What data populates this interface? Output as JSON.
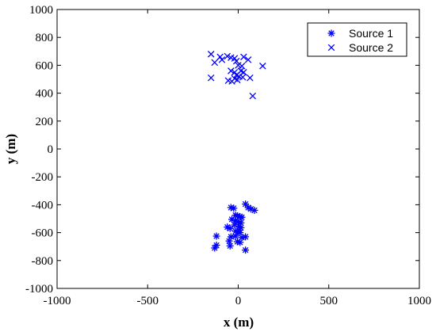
{
  "chart_data": {
    "type": "scatter",
    "title": "",
    "xlabel": "x (m)",
    "ylabel": "y (m)",
    "xlim": [
      -1000,
      1000
    ],
    "ylim": [
      -1000,
      1000
    ],
    "xticks": [
      -1000,
      -500,
      0,
      500,
      1000
    ],
    "yticks": [
      -1000,
      -800,
      -600,
      -400,
      -200,
      0,
      200,
      400,
      600,
      800,
      1000
    ],
    "grid": false,
    "legend_position": "top-right",
    "series": [
      {
        "name": "Source 1",
        "marker": "asterisk",
        "color": "#0000ff",
        "points": [
          [
            -40,
            -420
          ],
          [
            -25,
            -425
          ],
          [
            40,
            -395
          ],
          [
            55,
            -420
          ],
          [
            70,
            -430
          ],
          [
            90,
            -440
          ],
          [
            -15,
            -475
          ],
          [
            -5,
            -480
          ],
          [
            10,
            -485
          ],
          [
            20,
            -490
          ],
          [
            -35,
            -505
          ],
          [
            -15,
            -515
          ],
          [
            0,
            -520
          ],
          [
            15,
            -530
          ],
          [
            -20,
            -545
          ],
          [
            5,
            -555
          ],
          [
            15,
            -565
          ],
          [
            -60,
            -560
          ],
          [
            -45,
            -570
          ],
          [
            -15,
            -590
          ],
          [
            0,
            -595
          ],
          [
            10,
            -600
          ],
          [
            -120,
            -625
          ],
          [
            -40,
            -630
          ],
          [
            -15,
            -625
          ],
          [
            20,
            -635
          ],
          [
            40,
            -630
          ],
          [
            -50,
            -660
          ],
          [
            -5,
            -665
          ],
          [
            10,
            -670
          ],
          [
            -120,
            -690
          ],
          [
            -45,
            -695
          ],
          [
            -130,
            -710
          ],
          [
            40,
            -725
          ]
        ]
      },
      {
        "name": "Source 2",
        "marker": "x",
        "color": "#0000ff",
        "points": [
          [
            -150,
            680
          ],
          [
            -100,
            660
          ],
          [
            -60,
            665
          ],
          [
            -40,
            655
          ],
          [
            -20,
            650
          ],
          [
            30,
            660
          ],
          [
            55,
            640
          ],
          [
            -130,
            620
          ],
          [
            -90,
            640
          ],
          [
            -10,
            630
          ],
          [
            0,
            600
          ],
          [
            20,
            595
          ],
          [
            135,
            595
          ],
          [
            -40,
            560
          ],
          [
            -20,
            550
          ],
          [
            15,
            560
          ],
          [
            30,
            550
          ],
          [
            -10,
            530
          ],
          [
            5,
            520
          ],
          [
            25,
            515
          ],
          [
            65,
            510
          ],
          [
            -150,
            510
          ],
          [
            -20,
            505
          ],
          [
            -55,
            490
          ],
          [
            -35,
            485
          ],
          [
            -5,
            495
          ],
          [
            80,
            380
          ]
        ]
      }
    ]
  }
}
